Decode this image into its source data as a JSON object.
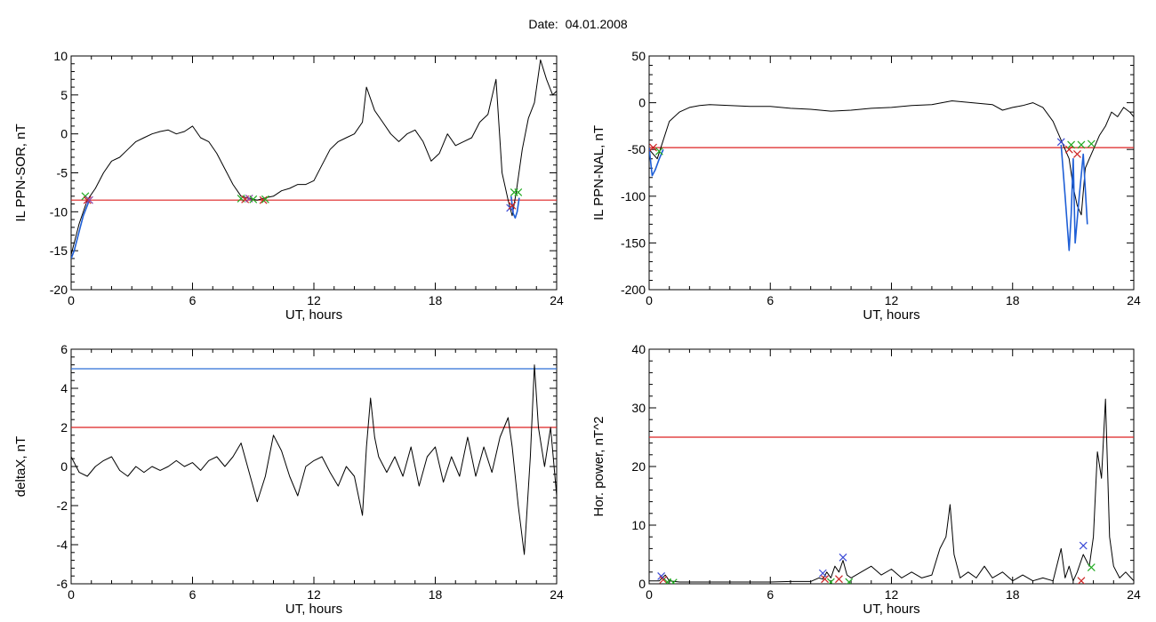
{
  "title": "Date:  04.01.2008",
  "chart_data": [
    {
      "type": "line",
      "xlabel": "UT, hours",
      "ylabel": "IL PPN-SOR, nT",
      "xlim": [
        0,
        24
      ],
      "ylim": [
        -20,
        10
      ],
      "xticks": [
        0,
        6,
        12,
        18,
        24
      ],
      "yticks": [
        -20,
        -15,
        -10,
        -5,
        0,
        5,
        10
      ],
      "threshold": -8.5,
      "series": [
        {
          "color": "#000000",
          "x": [
            0.0,
            0.4,
            0.8,
            1.2,
            1.6,
            2.0,
            2.4,
            2.8,
            3.2,
            3.6,
            4.0,
            4.4,
            4.8,
            5.2,
            5.6,
            6.0,
            6.4,
            6.8,
            7.2,
            7.6,
            8.0,
            8.4,
            8.8,
            9.2,
            9.6,
            10.0,
            10.4,
            10.8,
            11.2,
            11.6,
            12.0,
            12.4,
            12.8,
            13.2,
            13.6,
            14.0,
            14.4,
            14.6,
            14.8,
            15.0,
            15.4,
            15.8,
            16.2,
            16.6,
            17.0,
            17.4,
            17.8,
            18.2,
            18.6,
            19.0,
            19.4,
            19.8,
            20.2,
            20.6,
            21.0,
            21.3,
            21.6,
            21.8,
            22.0,
            22.3,
            22.6,
            22.9,
            23.2,
            23.5,
            23.8,
            24.0
          ],
          "y": [
            -15.5,
            -11.5,
            -8.5,
            -7.0,
            -5.0,
            -3.5,
            -3.0,
            -2.0,
            -1.0,
            -0.5,
            0.0,
            0.3,
            0.5,
            0.0,
            0.3,
            1.0,
            -0.5,
            -1.0,
            -2.5,
            -4.5,
            -6.5,
            -8.0,
            -8.3,
            -8.5,
            -8.2,
            -8.0,
            -7.3,
            -7.0,
            -6.5,
            -6.5,
            -6.0,
            -4.0,
            -2.0,
            -1.0,
            -0.5,
            0.0,
            1.5,
            6.0,
            4.5,
            3.0,
            1.5,
            0.0,
            -1.0,
            0.0,
            0.5,
            -1.0,
            -3.5,
            -2.5,
            0.0,
            -1.5,
            -1.0,
            -0.5,
            1.5,
            2.5,
            7.0,
            -5.0,
            -8.5,
            -10.5,
            -7.5,
            -2.0,
            2.0,
            4.0,
            9.5,
            7.0,
            5.0,
            5.5
          ]
        },
        {
          "color": "#1f5fd6",
          "x": [
            0.0,
            0.15,
            0.3,
            0.45,
            0.6,
            0.75,
            0.9
          ],
          "y": [
            -16.0,
            -15.0,
            -13.5,
            -12.0,
            -10.5,
            -9.5,
            -8.5
          ]
        },
        {
          "color": "#1f5fd6",
          "x": [
            21.75,
            21.85,
            21.95,
            22.05,
            22.15
          ],
          "y": [
            -8.0,
            -10.2,
            -10.8,
            -10.0,
            -8.2
          ]
        }
      ],
      "markers": [
        {
          "x": 0.7,
          "y": -8.0,
          "color": "#22aa22"
        },
        {
          "x": 0.8,
          "y": -8.5,
          "color": "#cc2222"
        },
        {
          "x": 0.9,
          "y": -8.5,
          "color": "#8844aa"
        },
        {
          "x": 8.4,
          "y": -8.3,
          "color": "#22aa22"
        },
        {
          "x": 8.6,
          "y": -8.4,
          "color": "#cc2222"
        },
        {
          "x": 8.8,
          "y": -8.3,
          "color": "#8844aa"
        },
        {
          "x": 9.0,
          "y": -8.4,
          "color": "#22aa22"
        },
        {
          "x": 9.5,
          "y": -8.5,
          "color": "#cc2222"
        },
        {
          "x": 9.6,
          "y": -8.4,
          "color": "#22aa22"
        },
        {
          "x": 21.7,
          "y": -9.5,
          "color": "#3b4bd6"
        },
        {
          "x": 21.8,
          "y": -9.2,
          "color": "#cc2222"
        },
        {
          "x": 21.9,
          "y": -7.5,
          "color": "#22aa22"
        },
        {
          "x": 22.1,
          "y": -7.5,
          "color": "#22aa22"
        }
      ]
    },
    {
      "type": "line",
      "xlabel": "UT, hours",
      "ylabel": "IL PPN-NAL, nT",
      "xlim": [
        0,
        24
      ],
      "ylim": [
        -200,
        50
      ],
      "xticks": [
        0,
        6,
        12,
        18,
        24
      ],
      "yticks": [
        -200,
        -150,
        -100,
        -50,
        0,
        50
      ],
      "threshold": -48,
      "series": [
        {
          "color": "#000000",
          "x": [
            0.0,
            0.4,
            0.7,
            1.0,
            1.5,
            2.0,
            2.5,
            3.0,
            4.0,
            5.0,
            6.0,
            7.0,
            8.0,
            9.0,
            10.0,
            11.0,
            12.0,
            13.0,
            14.0,
            15.0,
            16.0,
            17.0,
            17.5,
            18.0,
            18.5,
            19.0,
            19.5,
            20.0,
            20.4,
            20.8,
            21.0,
            21.2,
            21.4,
            21.6,
            21.8,
            22.0,
            22.3,
            22.6,
            22.9,
            23.2,
            23.5,
            23.8,
            24.0
          ],
          "y": [
            -50,
            -60,
            -40,
            -20,
            -10,
            -5,
            -3,
            -2,
            -3,
            -4,
            -4,
            -6,
            -7,
            -9,
            -8,
            -6,
            -5,
            -3,
            -2,
            2,
            0,
            -2,
            -8,
            -5,
            -3,
            0,
            -5,
            -20,
            -40,
            -60,
            -90,
            -110,
            -120,
            -70,
            -60,
            -50,
            -35,
            -25,
            -10,
            -15,
            -5,
            -10,
            -15
          ]
        },
        {
          "color": "#1f5fd6",
          "x": [
            0.0,
            0.15,
            0.3,
            0.5,
            0.7
          ],
          "y": [
            -48,
            -78,
            -72,
            -60,
            -50
          ]
        },
        {
          "color": "#1f5fd6",
          "x": [
            20.4,
            20.6,
            20.8,
            20.9,
            21.0,
            21.1,
            21.3,
            21.5,
            21.7
          ],
          "y": [
            -45,
            -100,
            -158,
            -120,
            -60,
            -150,
            -100,
            -55,
            -130
          ]
        }
      ],
      "markers": [
        {
          "x": 0.2,
          "y": -48,
          "color": "#cc2222"
        },
        {
          "x": 0.5,
          "y": -52,
          "color": "#22aa22"
        },
        {
          "x": 20.4,
          "y": -42,
          "color": "#3b4bd6"
        },
        {
          "x": 20.8,
          "y": -50,
          "color": "#cc2222"
        },
        {
          "x": 20.9,
          "y": -45,
          "color": "#22aa22"
        },
        {
          "x": 21.2,
          "y": -55,
          "color": "#cc2222"
        },
        {
          "x": 21.4,
          "y": -45,
          "color": "#22aa22"
        },
        {
          "x": 21.9,
          "y": -44,
          "color": "#22aa22"
        }
      ]
    },
    {
      "type": "line",
      "xlabel": "UT, hours",
      "ylabel": "deltaX, nT",
      "xlim": [
        0,
        24
      ],
      "ylim": [
        -6,
        6
      ],
      "xticks": [
        0,
        6,
        12,
        18,
        24
      ],
      "yticks": [
        -6,
        -4,
        -2,
        0,
        2,
        4,
        6
      ],
      "threshold": 2,
      "upper_threshold": 5,
      "series": [
        {
          "color": "#000000",
          "x": [
            0.0,
            0.4,
            0.8,
            1.2,
            1.6,
            2.0,
            2.4,
            2.8,
            3.2,
            3.6,
            4.0,
            4.4,
            4.8,
            5.2,
            5.6,
            6.0,
            6.4,
            6.8,
            7.2,
            7.6,
            8.0,
            8.4,
            8.8,
            9.2,
            9.6,
            10.0,
            10.4,
            10.8,
            11.2,
            11.6,
            12.0,
            12.4,
            12.8,
            13.2,
            13.6,
            14.0,
            14.4,
            14.6,
            14.8,
            15.0,
            15.2,
            15.6,
            16.0,
            16.4,
            16.8,
            17.2,
            17.6,
            18.0,
            18.4,
            18.8,
            19.2,
            19.6,
            20.0,
            20.4,
            20.8,
            21.2,
            21.6,
            21.8,
            22.1,
            22.4,
            22.7,
            22.9,
            23.1,
            23.4,
            23.7,
            24.0
          ],
          "y": [
            0.5,
            -0.3,
            -0.5,
            0.0,
            0.3,
            0.5,
            -0.2,
            -0.5,
            0.0,
            -0.3,
            0.0,
            -0.2,
            0.0,
            0.3,
            0.0,
            0.2,
            -0.2,
            0.3,
            0.5,
            0.0,
            0.5,
            1.2,
            -0.3,
            -1.8,
            -0.5,
            1.6,
            0.8,
            -0.5,
            -1.5,
            0.0,
            0.3,
            0.5,
            -0.3,
            -1.0,
            0.0,
            -0.5,
            -2.5,
            1.0,
            3.5,
            1.5,
            0.5,
            -0.3,
            0.5,
            -0.5,
            1.0,
            -1.0,
            0.5,
            1.0,
            -0.8,
            0.5,
            -0.5,
            1.5,
            -0.5,
            1.0,
            -0.3,
            1.5,
            2.5,
            1.0,
            -2.0,
            -4.5,
            0.5,
            5.2,
            2.0,
            0.0,
            2.0,
            -1.5
          ]
        }
      ],
      "markers": []
    },
    {
      "type": "line",
      "xlabel": "UT, hours",
      "ylabel": "Hor. power, nT^2",
      "xlim": [
        0,
        24
      ],
      "ylim": [
        0,
        40
      ],
      "xticks": [
        0,
        6,
        12,
        18,
        24
      ],
      "yticks": [
        0,
        10,
        20,
        30,
        40
      ],
      "threshold": 25,
      "series": [
        {
          "color": "#000000",
          "x": [
            0.0,
            0.5,
            0.8,
            1.0,
            1.5,
            2.0,
            3.0,
            4.0,
            5.0,
            6.0,
            7.0,
            8.0,
            8.4,
            8.6,
            8.8,
            9.0,
            9.2,
            9.4,
            9.6,
            9.8,
            10.0,
            10.5,
            11.0,
            11.5,
            12.0,
            12.5,
            13.0,
            13.5,
            14.0,
            14.4,
            14.7,
            14.9,
            15.1,
            15.4,
            15.8,
            16.2,
            16.6,
            17.0,
            17.5,
            18.0,
            18.5,
            19.0,
            19.5,
            20.0,
            20.4,
            20.6,
            20.8,
            21.0,
            21.2,
            21.5,
            21.8,
            22.0,
            22.2,
            22.4,
            22.6,
            22.8,
            23.0,
            23.3,
            23.6,
            24.0
          ],
          "y": [
            0.5,
            0.5,
            1.5,
            0.5,
            0.3,
            0.3,
            0.3,
            0.3,
            0.3,
            0.3,
            0.4,
            0.4,
            1.0,
            0.8,
            2.0,
            1.0,
            3.0,
            2.0,
            4.0,
            1.5,
            1.0,
            2.0,
            3.0,
            1.5,
            2.5,
            1.0,
            2.0,
            1.0,
            1.5,
            6.0,
            8.0,
            13.5,
            5.0,
            1.0,
            2.0,
            1.0,
            3.0,
            1.0,
            2.0,
            0.5,
            1.5,
            0.5,
            1.0,
            0.5,
            6.0,
            1.0,
            3.0,
            0.5,
            2.0,
            5.0,
            3.0,
            8.0,
            22.5,
            18.0,
            31.5,
            8.0,
            3.0,
            1.0,
            2.0,
            0.5
          ]
        }
      ],
      "markers": [
        {
          "x": 0.6,
          "y": 1.3,
          "color": "#3b4bd6"
        },
        {
          "x": 0.7,
          "y": 0.7,
          "color": "#cc2222"
        },
        {
          "x": 0.9,
          "y": 0.3,
          "color": "#22aa22"
        },
        {
          "x": 1.2,
          "y": 0.2,
          "color": "#22aa22"
        },
        {
          "x": 8.6,
          "y": 1.8,
          "color": "#3b4bd6"
        },
        {
          "x": 8.7,
          "y": 0.8,
          "color": "#cc2222"
        },
        {
          "x": 9.0,
          "y": 0.3,
          "color": "#22aa22"
        },
        {
          "x": 9.4,
          "y": 0.8,
          "color": "#cc2222"
        },
        {
          "x": 9.6,
          "y": 4.5,
          "color": "#3b4bd6"
        },
        {
          "x": 9.9,
          "y": 0.3,
          "color": "#22aa22"
        },
        {
          "x": 21.4,
          "y": 0.5,
          "color": "#cc2222"
        },
        {
          "x": 21.5,
          "y": 6.5,
          "color": "#3b4bd6"
        },
        {
          "x": 21.9,
          "y": 2.8,
          "color": "#22aa22"
        }
      ]
    }
  ],
  "colors": {
    "axis": "#000000",
    "threshold": "#dd2222",
    "upper_threshold": "#2f6fd6"
  }
}
